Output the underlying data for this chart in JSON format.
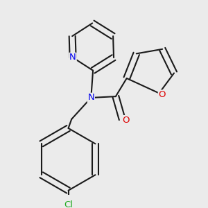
{
  "background_color": "#ebebeb",
  "bond_color": "#1a1a1a",
  "bond_width": 1.5,
  "atom_colors": {
    "N": "#0000ee",
    "O": "#dd0000",
    "Cl": "#22aa22",
    "C": "#1a1a1a"
  },
  "font_size_atom": 9.5
}
